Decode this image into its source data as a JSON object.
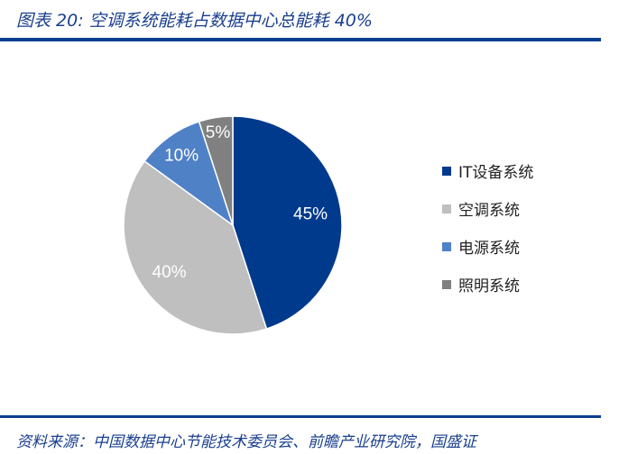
{
  "title": "图表 20:  空调系统能耗占数据中心总能耗 40%",
  "source": "资料来源：中国数据中心节能技术委员会、前瞻产业研究院，国盛证",
  "chart_data": {
    "type": "pie",
    "categories": [
      "IT设备系统",
      "空调系统",
      "电源系统",
      "照明系统"
    ],
    "values": [
      45,
      40,
      10,
      5
    ],
    "labels": [
      "45%",
      "40%",
      "10%",
      "5%"
    ],
    "colors": [
      "#003a8c",
      "#bfbfbf",
      "#4f81c7",
      "#808080"
    ],
    "label_colors": [
      "#ffffff",
      "#ffffff",
      "#ffffff",
      "#ffffff"
    ],
    "start": "top, clockwise",
    "legend": "right"
  }
}
